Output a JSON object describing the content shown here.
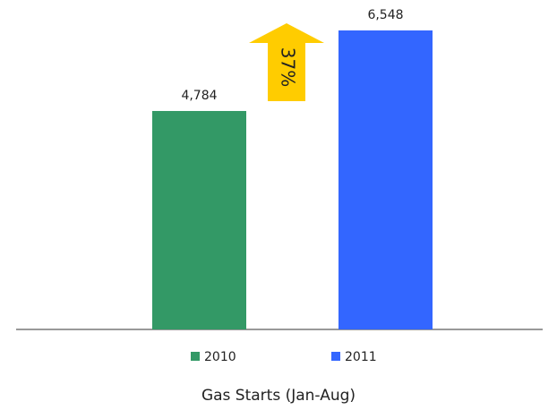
{
  "chart_data": {
    "type": "bar",
    "x_label": "Gas Starts  (Jan-Aug)",
    "annotation": "37%",
    "categories": [
      null
    ],
    "series": [
      {
        "name": "2010",
        "color": "#339966",
        "values": [
          4784
        ],
        "value_labels": [
          "4,784"
        ]
      },
      {
        "name": "2011",
        "color": "#3366ff",
        "values": [
          6548
        ],
        "value_labels": [
          "6,548"
        ]
      }
    ]
  }
}
